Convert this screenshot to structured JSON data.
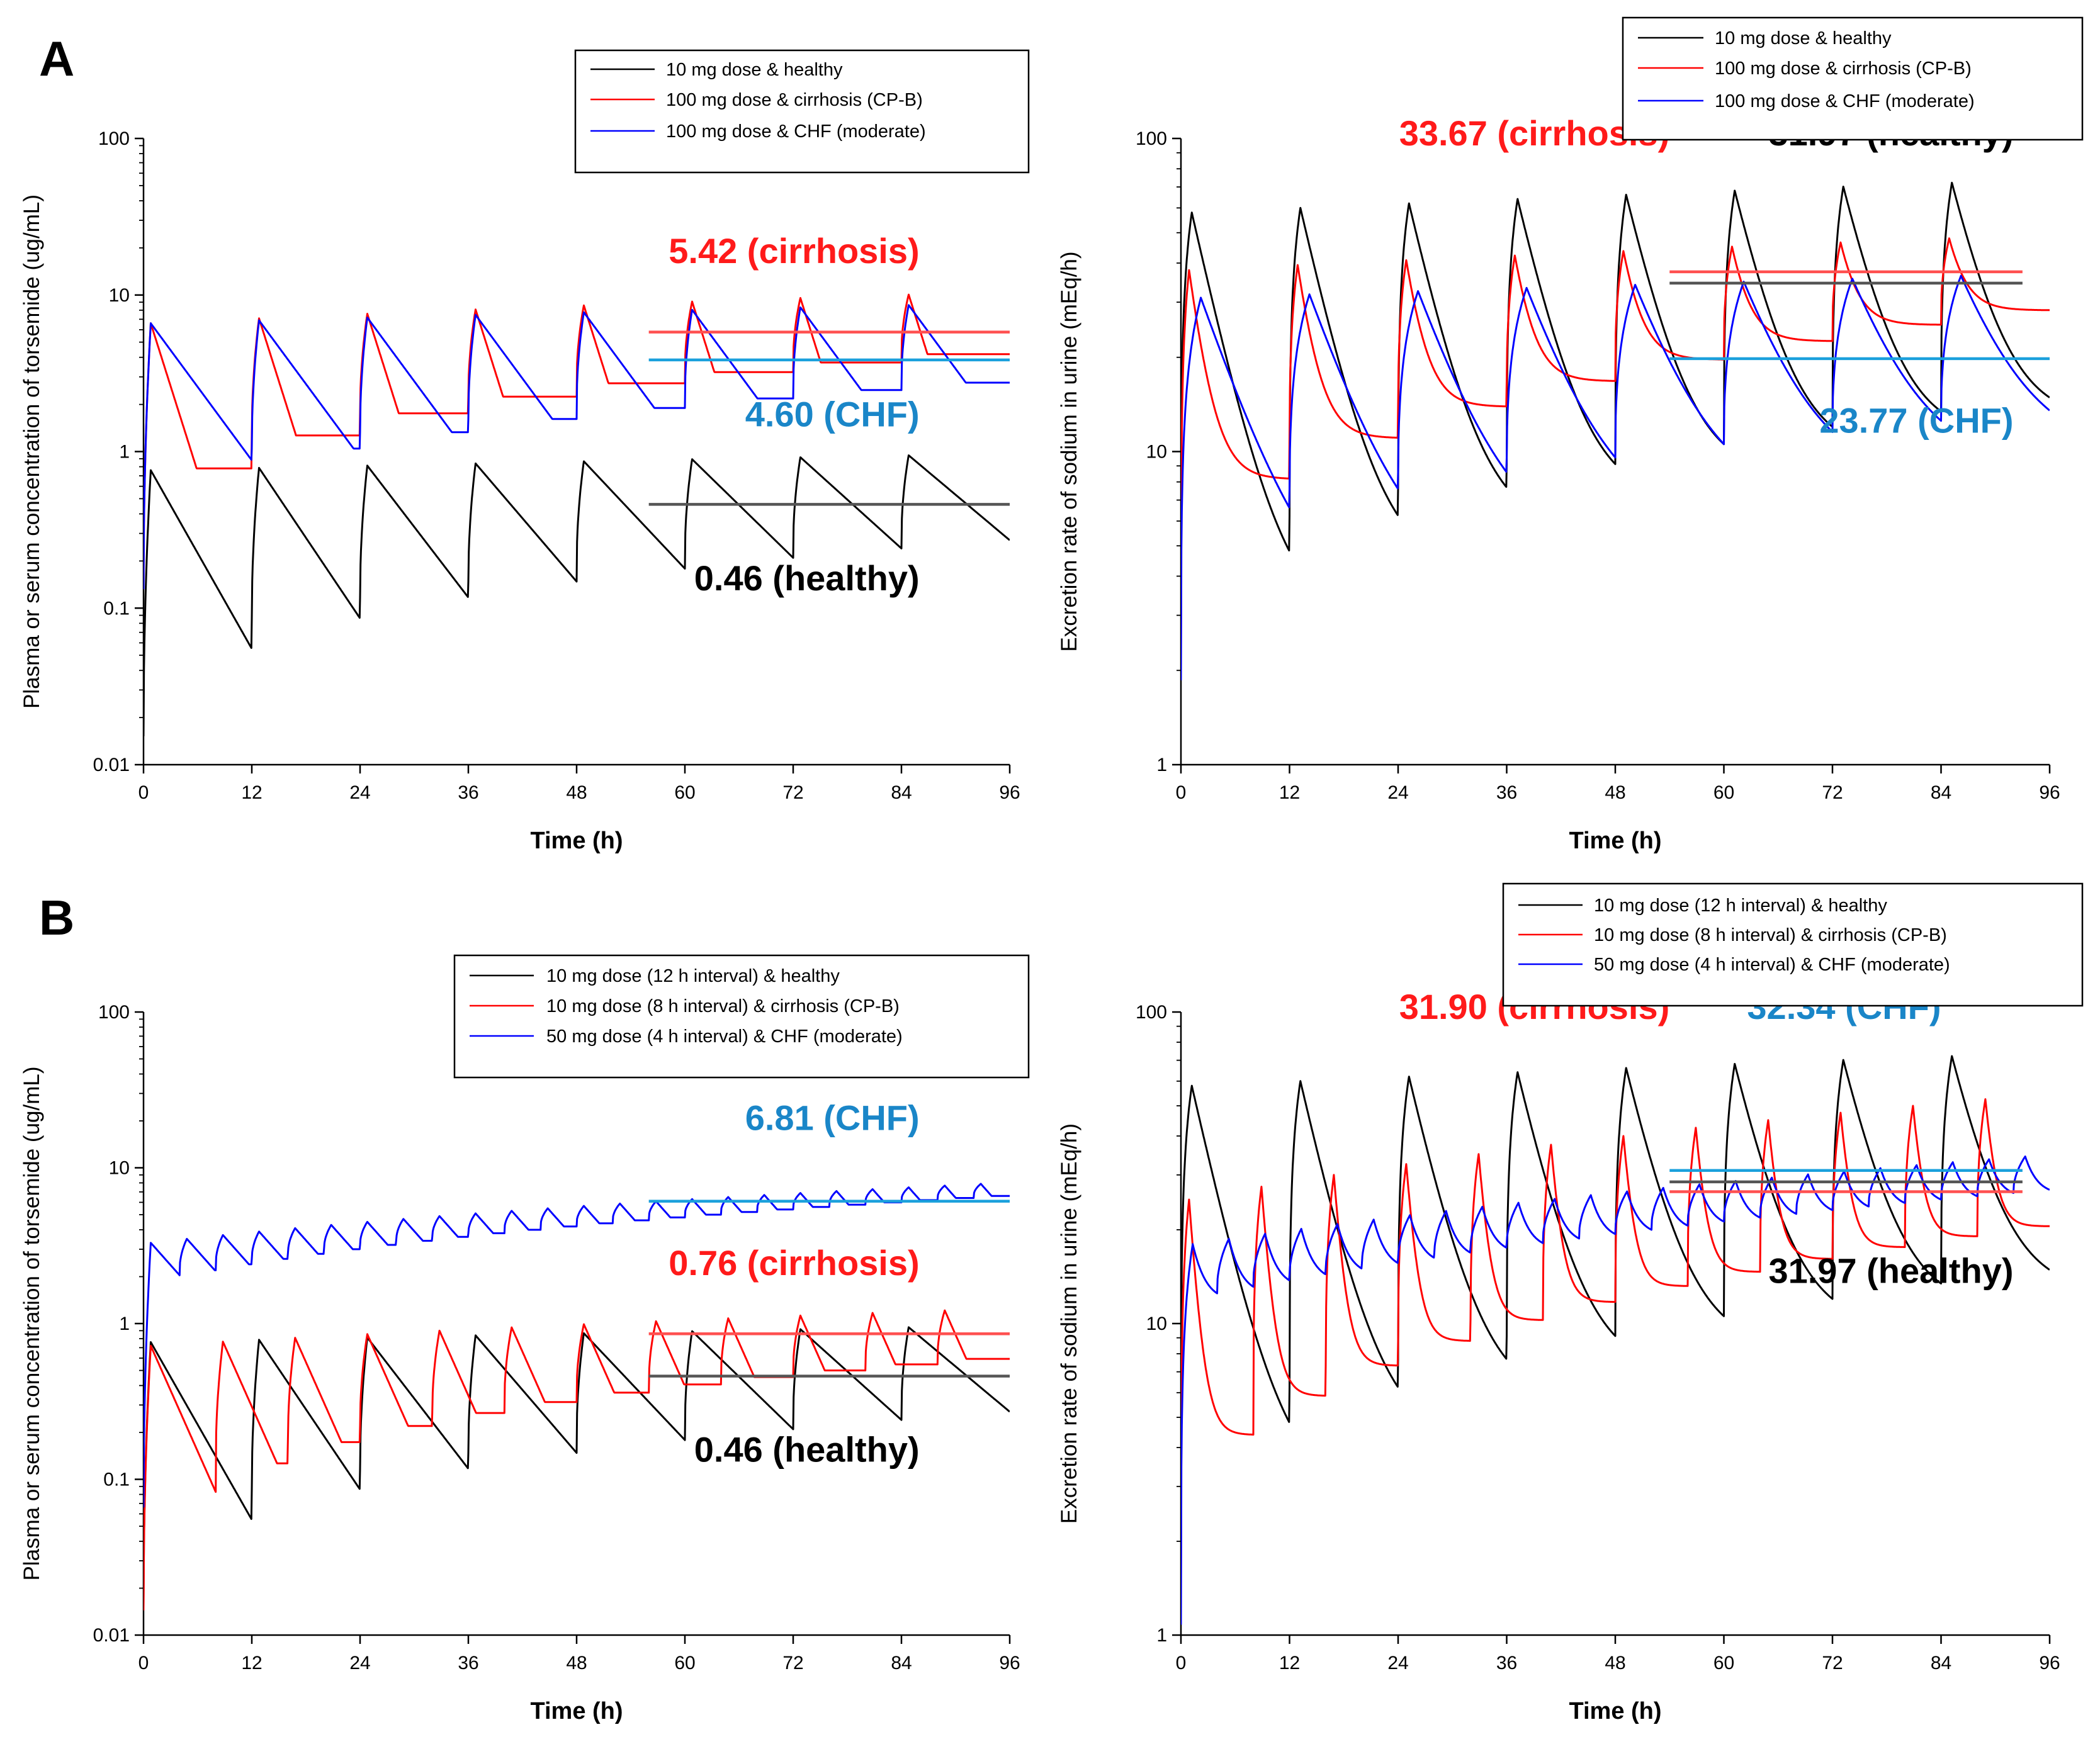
{
  "figure": {
    "panel_labels": [
      "A",
      "B"
    ]
  },
  "chart_data": [
    {
      "id": "A-left",
      "type": "line",
      "scale": "log",
      "xlabel": "Time (h)",
      "ylabel": "Plasma or serum concentration of torsemide (ug/mL)",
      "xlim": [
        0,
        96
      ],
      "ylim": [
        0.01,
        100
      ],
      "xticks": [
        "0",
        "12",
        "24",
        "36",
        "48",
        "60",
        "72",
        "84",
        "96"
      ],
      "yticks": [
        "0.01",
        "0.1",
        "1",
        "10",
        "100"
      ],
      "legend": [
        "10 mg dose & healthy",
        "100 mg dose & cirrhosis (CP-B)",
        "100 mg dose & CHF (moderate)"
      ],
      "series": [
        {
          "name": "10 mg dose & healthy",
          "color": "#000000",
          "model": "pk",
          "interval": 12,
          "peak": 0.76,
          "trough": 0.055,
          "peakGrowth": 0.28,
          "troughGrowth": 4.5,
          "risePos": 0.09
        },
        {
          "name": "100 mg dose & cirrhosis (CP-B)",
          "color": "#ff0000",
          "model": "pk",
          "interval": 12,
          "peak": 6.6,
          "trough": 0.78,
          "peakGrowth": 0.6,
          "troughGrowth": 5.0,
          "risePos": 0.05,
          "k": 0.42
        },
        {
          "name": "100 mg dose & CHF (moderate)",
          "color": "#0000ff",
          "model": "pk",
          "interval": 12,
          "peak": 6.6,
          "trough": 0.76,
          "peakGrowth": 0.35,
          "troughGrowth": 3.0,
          "risePos": 0.17,
          "k": 0.18
        }
      ],
      "means": [
        {
          "value": 5.8,
          "color": "#ff5050",
          "x0": 56,
          "x1": 96
        },
        {
          "value": 3.85,
          "color": "#1aa0dc",
          "x0": 56,
          "x1": 96
        },
        {
          "value": 0.46,
          "color": "#555555",
          "x0": 56,
          "x1": 96
        }
      ],
      "annotations": [
        {
          "text": "5.42 (cirrhosis)",
          "color": "#ff1a1a",
          "x": 86,
          "y": 16
        },
        {
          "text": "4.60 (CHF)",
          "color": "#1a86c8",
          "x": 86,
          "y": 1.45
        },
        {
          "text": "0.46 (healthy)",
          "color": "#000000",
          "x": 86,
          "y": 0.13
        }
      ]
    },
    {
      "id": "A-right",
      "type": "line",
      "scale": "log",
      "xlabel": "Time (h)",
      "ylabel": "Excretion rate of sodium in urine (mEq/h)",
      "xlim": [
        0,
        96
      ],
      "ylim": [
        1,
        100
      ],
      "xticks": [
        "0",
        "12",
        "24",
        "36",
        "48",
        "60",
        "72",
        "84",
        "96"
      ],
      "yticks": [
        "1",
        "10",
        "100"
      ],
      "legend": [
        "10 mg dose & healthy",
        "100 mg dose & cirrhosis (CP-B)",
        "100 mg dose & CHF (moderate)"
      ],
      "series": [
        {
          "name": "10 mg dose & healthy",
          "color": "#000000",
          "model": "pd",
          "interval": 12,
          "peak": 58,
          "trough": 4.8,
          "peakGrowth": 0.28,
          "troughGrowth": 2.4,
          "tpeak": 1.2
        },
        {
          "name": "100 mg dose & cirrhosis (CP-B)",
          "color": "#ff0000",
          "model": "pd",
          "interval": 12,
          "peak": 38,
          "trough": 8.2,
          "peakGrowth": 0.3,
          "troughGrowth": 2.8,
          "tpeak": 0.9,
          "shape": 3.0
        },
        {
          "name": "100 mg dose & CHF (moderate)",
          "color": "#0000ff",
          "model": "pd",
          "interval": 12,
          "peak": 31,
          "trough": 6.6,
          "peakGrowth": 0.2,
          "troughGrowth": 1.2,
          "tpeak": 2.2,
          "shape": 0.9
        }
      ],
      "means": [
        {
          "value": 37.5,
          "color": "#ff5050",
          "x0": 54,
          "x1": 93
        },
        {
          "value": 34.5,
          "color": "#555555",
          "x0": 54,
          "x1": 93
        },
        {
          "value": 19.8,
          "color": "#1aa0dc",
          "x0": 54,
          "x1": 96
        }
      ],
      "annotations": [
        {
          "text": "33.67 (cirrhosis)",
          "color": "#ff1a1a",
          "x": 54,
          "y": 95
        },
        {
          "text": "31.97 (healthy)",
          "color": "#000000",
          "x": 92,
          "y": 95
        },
        {
          "text": "23.77 (CHF)",
          "color": "#1a86c8",
          "x": 92,
          "y": 11.5
        }
      ]
    },
    {
      "id": "B-left",
      "type": "line",
      "scale": "log",
      "xlabel": "Time (h)",
      "ylabel": "Plasma or serum concentration of torsemide (ug/mL)",
      "xlim": [
        0,
        96
      ],
      "ylim": [
        0.01,
        100
      ],
      "xticks": [
        "0",
        "12",
        "24",
        "36",
        "48",
        "60",
        "72",
        "84",
        "96"
      ],
      "yticks": [
        "0.01",
        "0.1",
        "1",
        "10",
        "100"
      ],
      "legend": [
        "10 mg dose (12 h interval) & healthy",
        "10 mg dose (8 h interval) & cirrhosis (CP-B)",
        "50 mg dose (4 h interval) & CHF (moderate)"
      ],
      "series": [
        {
          "name": "10 mg dose (12 h interval) & healthy",
          "color": "#000000",
          "model": "pk",
          "interval": 12,
          "peak": 0.76,
          "trough": 0.055,
          "peakGrowth": 0.28,
          "troughGrowth": 4.5,
          "risePos": 0.09
        },
        {
          "name": "10 mg dose (8 h interval) & cirrhosis (CP-B)",
          "color": "#ff0000",
          "model": "pk",
          "interval": 8,
          "peak": 0.72,
          "trough": 0.08,
          "peakGrowth": 0.75,
          "troughGrowth": 7.0,
          "risePos": 0.11,
          "k": 0.3
        },
        {
          "name": "50 mg dose (4 h interval) & CHF (moderate)",
          "color": "#0000ff",
          "model": "pk",
          "interval": 4,
          "peak": 3.3,
          "trough": 2.0,
          "peakGrowth": 1.45,
          "troughGrowth": 2.4,
          "risePos": 0.2,
          "k": 0.15
        }
      ],
      "means": [
        {
          "value": 6.1,
          "color": "#1aa0dc",
          "x0": 56,
          "x1": 96
        },
        {
          "value": 0.86,
          "color": "#ff5050",
          "x0": 56,
          "x1": 96
        },
        {
          "value": 0.46,
          "color": "#555555",
          "x0": 56,
          "x1": 96
        }
      ],
      "annotations": [
        {
          "text": "6.81 (CHF)",
          "color": "#1a86c8",
          "x": 86,
          "y": 17.5
        },
        {
          "text": "0.76 (cirrhosis)",
          "color": "#ff1a1a",
          "x": 86,
          "y": 2.05
        },
        {
          "text": "0.46 (healthy)",
          "color": "#000000",
          "x": 86,
          "y": 0.13
        }
      ]
    },
    {
      "id": "B-right",
      "type": "line",
      "scale": "log",
      "xlabel": "Time (h)",
      "ylabel": "Excretion rate of sodium in urine (mEq/h)",
      "xlim": [
        0,
        96
      ],
      "ylim": [
        1,
        100
      ],
      "xticks": [
        "0",
        "12",
        "24",
        "36",
        "48",
        "60",
        "72",
        "84",
        "96"
      ],
      "yticks": [
        "1",
        "10",
        "100"
      ],
      "legend": [
        "10 mg dose (12 h interval) & healthy",
        "10 mg dose (8 h interval) & cirrhosis (CP-B)",
        "50 mg dose (4 h interval) & CHF (moderate)"
      ],
      "series": [
        {
          "name": "10 mg dose (12 h interval) & healthy",
          "color": "#000000",
          "model": "pd",
          "interval": 12,
          "peak": 58,
          "trough": 4.8,
          "peakGrowth": 0.28,
          "troughGrowth": 2.4,
          "tpeak": 1.2
        },
        {
          "name": "10 mg dose (8 h interval) & cirrhosis (CP-B)",
          "color": "#ff0000",
          "model": "pd",
          "interval": 8,
          "peak": 25,
          "trough": 4.4,
          "peakGrowth": 1.2,
          "troughGrowth": 4.0,
          "tpeak": 0.9,
          "shape": 3.5
        },
        {
          "name": "50 mg dose (4 h interval) & CHF (moderate)",
          "color": "#0000ff",
          "model": "pd",
          "interval": 4,
          "peak": 18,
          "trough": 12.5,
          "peakGrowth": 0.95,
          "troughGrowth": 1.2,
          "tpeak": 1.3,
          "shape": 1.0
        }
      ],
      "means": [
        {
          "value": 31.0,
          "color": "#1aa0dc",
          "x0": 54,
          "x1": 93
        },
        {
          "value": 28.5,
          "color": "#555555",
          "x0": 54,
          "x1": 93
        },
        {
          "value": 26.5,
          "color": "#ff5050",
          "x0": 54,
          "x1": 93
        }
      ],
      "annotations": [
        {
          "text": "31.90 (cirrhosis)",
          "color": "#ff1a1a",
          "x": 54,
          "y": 95
        },
        {
          "text": "32.34 (CHF)",
          "color": "#1a86c8",
          "x": 84,
          "y": 95
        },
        {
          "text": "31.97 (healthy)",
          "color": "#000000",
          "x": 92,
          "y": 13.5
        }
      ]
    }
  ]
}
